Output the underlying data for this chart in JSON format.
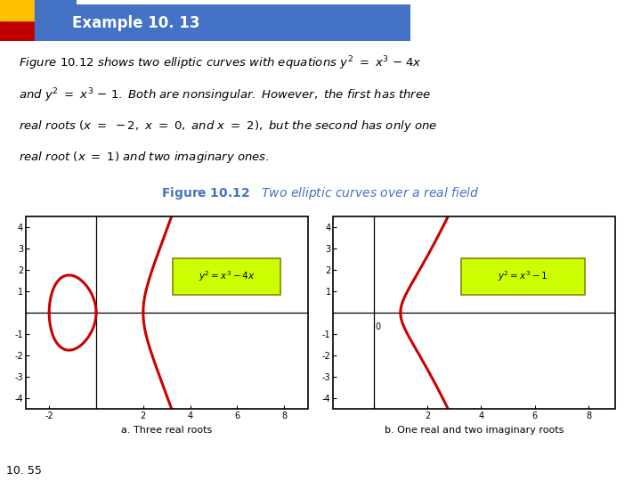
{
  "page_bg": "#ffffff",
  "title_box_color": "#4472c4",
  "title_text": "Example 10. 13",
  "title_text_color": "#ffffff",
  "header_yellow": "#ffc000",
  "header_red": "#c00000",
  "fig_caption_color": "#4472c4",
  "curve_color": "#cc0000",
  "label_bg": "#ccff00",
  "label_border": "#888800",
  "sub_caption1": "a. Three real roots",
  "sub_caption2": "b. One real and two imaginary roots",
  "footnote": "10. 55",
  "plot_bg": "#ffffff",
  "axis_color": "#000000"
}
